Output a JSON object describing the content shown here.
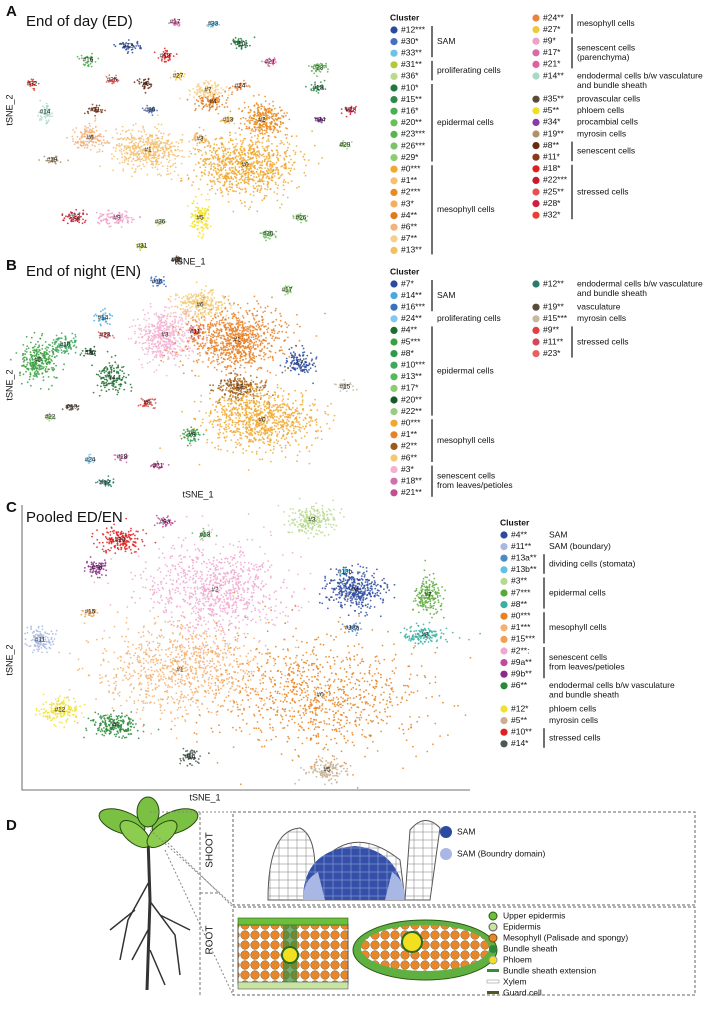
{
  "panels": [
    {
      "letter": "A",
      "title": "End of day (ED)",
      "x_label": "tSNE_1",
      "y_label": "tSNE_2",
      "clusters": [
        "#17",
        "#33",
        "#12",
        "#10",
        "#16",
        "#18",
        "#21",
        "#23",
        "#32",
        "#25",
        "#8",
        "#27",
        "#7",
        "#24",
        "#15",
        "#14",
        "#11",
        "#30",
        "#4",
        "#13",
        "#2",
        "#28",
        "#34",
        "#3",
        "#6",
        "#1",
        "#29",
        "#19",
        "#0",
        "#22",
        "#9",
        "#36",
        "#5",
        "#26",
        "#31",
        "#20",
        "#35"
      ],
      "legend": {
        "title": "Cluster",
        "columns": [
          [
            {
              "lines": [
                "SAM"
              ],
              "entries": [
                {
                  "label": "#12***",
                  "color": "#2c4a9e"
                },
                {
                  "label": "#30*",
                  "color": "#4a6fc0"
                },
                {
                  "label": "#33**",
                  "color": "#6cc3e8"
                }
              ]
            },
            {
              "lines": [
                "proliferating cells"
              ],
              "entries": [
                {
                  "label": "#31**",
                  "color": "#b5c73a"
                },
                {
                  "label": "#36*",
                  "color": "#b9dc8a"
                }
              ]
            },
            {
              "lines": [
                "epidermal cells"
              ],
              "entries": [
                {
                  "label": "#10*",
                  "color": "#1f7a3a"
                },
                {
                  "label": "#15**",
                  "color": "#2e8b4a"
                },
                {
                  "label": "#16*",
                  "color": "#4caf50"
                },
                {
                  "label": "#20**",
                  "color": "#6bbf59"
                },
                {
                  "label": "#23***",
                  "color": "#5ab34e"
                },
                {
                  "label": "#26***",
                  "color": "#7ac36a"
                },
                {
                  "label": "#29*",
                  "color": "#8fcc70"
                }
              ]
            },
            {
              "lines": [
                "mesophyll cells"
              ],
              "entries": [
                {
                  "label": "#0***",
                  "color": "#f0a830"
                },
                {
                  "label": "#1**",
                  "color": "#f5c070"
                },
                {
                  "label": "#2***",
                  "color": "#e88a20"
                },
                {
                  "label": "#3*",
                  "color": "#f0b060"
                },
                {
                  "label": "#4**",
                  "color": "#e07a1a"
                },
                {
                  "label": "#6**",
                  "color": "#f2b27a"
                },
                {
                  "label": "#7**",
                  "color": "#f6cf8a"
                },
                {
                  "label": "#13**",
                  "color": "#f2c060"
                }
              ]
            }
          ],
          [
            {
              "lines": [
                "mesophyll cells"
              ],
              "entries": [
                {
                  "label": "#24**",
                  "color": "#e8843c"
                },
                {
                  "label": "#27*",
                  "color": "#f0c840"
                }
              ]
            },
            {
              "lines": [
                "senescent cells",
                "(parenchyma)"
              ],
              "entries": [
                {
                  "label": "#9*",
                  "color": "#f0a0c8"
                },
                {
                  "label": "#17*",
                  "color": "#d96aa8"
                },
                {
                  "label": "#21*",
                  "color": "#e060a0"
                }
              ]
            },
            {
              "lines": [
                "endodermal cells b/w vasculature",
                "and bundle sheath"
              ],
              "entries": [
                {
                  "label": "#14**",
                  "color": "#a8d8c8"
                }
              ]
            },
            {
              "lines": [
                "provascular cells"
              ],
              "entries": [
                {
                  "label": "#35**",
                  "color": "#5a4a3a"
                }
              ]
            },
            {
              "lines": [
                "phloem cells"
              ],
              "entries": [
                {
                  "label": "#5**",
                  "color": "#f2e020"
                }
              ]
            },
            {
              "lines": [
                "procambial cells"
              ],
              "entries": [
                {
                  "label": "#34*",
                  "color": "#8a3aa0"
                }
              ]
            },
            {
              "lines": [
                "myrosin cells"
              ],
              "entries": [
                {
                  "label": "#19**",
                  "color": "#b0926a"
                }
              ]
            },
            {
              "lines": [
                "senescent cells"
              ],
              "entries": [
                {
                  "label": "#8**",
                  "color": "#6a2a10"
                },
                {
                  "label": "#11*",
                  "color": "#8a3a1a"
                }
              ]
            },
            {
              "lines": [
                "stressed cells"
              ],
              "entries": [
                {
                  "label": "#18*",
                  "color": "#e02020"
                },
                {
                  "label": "#22***",
                  "color": "#c81a2a"
                },
                {
                  "label": "#25**",
                  "color": "#e85050"
                },
                {
                  "label": "#28*",
                  "color": "#d02040"
                },
                {
                  "label": "#32*",
                  "color": "#e84030"
                }
              ]
            }
          ]
        ]
      }
    },
    {
      "letter": "B",
      "title": "End of night (EN)",
      "x_label": "tSNE_1",
      "y_label": "tSNE_2",
      "clusters": [
        "#16",
        "#17",
        "#6",
        "#14",
        "#3",
        "#11",
        "#23",
        "#10",
        "#1",
        "#7",
        "#5",
        "#20",
        "#4",
        "#2",
        "#15",
        "#9",
        "#19",
        "#0",
        "#22",
        "#8",
        "#24",
        "#18",
        "#21",
        "#12",
        "#13"
      ],
      "legend": {
        "title": "Cluster",
        "columns": [
          [
            {
              "lines": [
                "SAM"
              ],
              "entries": [
                {
                  "label": "#7*",
                  "color": "#2c4a9e"
                },
                {
                  "label": "#14**",
                  "color": "#4aa8e0"
                },
                {
                  "label": "#16***",
                  "color": "#3a70c0"
                }
              ]
            },
            {
              "lines": [
                "proliferating cells"
              ],
              "entries": [
                {
                  "label": "#24**",
                  "color": "#80c8f0"
                }
              ]
            },
            {
              "lines": [
                "epidermal cells"
              ],
              "entries": [
                {
                  "label": "#4**",
                  "color": "#1e6e30"
                },
                {
                  "label": "#5***",
                  "color": "#3aa040"
                },
                {
                  "label": "#8*",
                  "color": "#2e9a48"
                },
                {
                  "label": "#10***",
                  "color": "#3fa860"
                },
                {
                  "label": "#13**",
                  "color": "#56b85a"
                },
                {
                  "label": "#17*",
                  "color": "#8ccc70"
                },
                {
                  "label": "#20**",
                  "color": "#145a2a"
                },
                {
                  "label": "#22**",
                  "color": "#98cc80"
                }
              ]
            },
            {
              "lines": [
                "mesophyll cells"
              ],
              "entries": [
                {
                  "label": "#0***",
                  "color": "#f0a830"
                },
                {
                  "label": "#1**",
                  "color": "#e8822a"
                },
                {
                  "label": "#2**",
                  "color": "#9a5a1a"
                },
                {
                  "label": "#6**",
                  "color": "#f2c870"
                }
              ]
            },
            {
              "lines": [
                "senescent cells",
                "from leaves/petioles"
              ],
              "entries": [
                {
                  "label": "#3*",
                  "color": "#f5b0d0"
                },
                {
                  "label": "#18**",
                  "color": "#d070b0"
                },
                {
                  "label": "#21**",
                  "color": "#c05090"
                }
              ]
            }
          ],
          [
            {
              "lines": [
                "endodermal cells b/w vasculature",
                "and bundle sheath"
              ],
              "entries": [
                {
                  "label": "#12**",
                  "color": "#2a7a6a"
                }
              ]
            },
            {
              "lines": [
                "vasculature"
              ],
              "entries": [
                {
                  "label": "#19**",
                  "color": "#5a4a3a"
                }
              ]
            },
            {
              "lines": [
                "myrosin cells"
              ],
              "entries": [
                {
                  "label": "#15***",
                  "color": "#c8b8a0"
                }
              ]
            },
            {
              "lines": [
                "stressed cells"
              ],
              "entries": [
                {
                  "label": "#9**",
                  "color": "#e04040"
                },
                {
                  "label": "#11**",
                  "color": "#d04a5a"
                },
                {
                  "label": "#23*",
                  "color": "#e86060"
                }
              ]
            }
          ]
        ]
      }
    },
    {
      "letter": "C",
      "title": "Pooled ED/EN",
      "x_label": "tSNE_1",
      "y_label": "tSNE_2",
      "clusters": [
        "#3",
        "#9a",
        "#10",
        "#9b",
        "#13b",
        "#4",
        "#7",
        "#2",
        "#15",
        "#13a",
        "#8",
        "#11",
        "#1",
        "#0",
        "#12",
        "#6",
        "#14",
        "#5"
      ],
      "legend": {
        "title": "Cluster",
        "columns": [
          [
            {
              "lines": [
                "SAM"
              ],
              "entries": [
                {
                  "label": "#4**",
                  "color": "#2c4aa0"
                }
              ]
            },
            {
              "lines": [
                "SAM (boundary)"
              ],
              "entries": [
                {
                  "label": "#11**",
                  "color": "#a8b8e0"
                }
              ]
            },
            {
              "lines": [
                "dividing cells (stomata)"
              ],
              "entries": [
                {
                  "label": "#13a**",
                  "color": "#4a8ac8"
                },
                {
                  "label": "#13b**",
                  "color": "#60c0e8"
                }
              ]
            },
            {
              "lines": [
                "epidermal cells"
              ],
              "entries": [
                {
                  "label": "#3**",
                  "color": "#b8d890"
                },
                {
                  "label": "#7***",
                  "color": "#5aa83a"
                },
                {
                  "label": "#8**",
                  "color": "#3ab0a0"
                }
              ]
            },
            {
              "lines": [
                "mesophyll cells"
              ],
              "entries": [
                {
                  "label": "#0***",
                  "color": "#e8821e"
                },
                {
                  "label": "#1***",
                  "color": "#f5b070"
                },
                {
                  "label": "#15***",
                  "color": "#f0a050"
                }
              ]
            },
            {
              "lines": [
                "senescent cells",
                "from leaves/petioles"
              ],
              "entries": [
                {
                  "label": "#2**:",
                  "color": "#f0a8d0"
                },
                {
                  "label": "#9a**",
                  "color": "#c04aa0"
                },
                {
                  "label": "#9b**",
                  "color": "#8a2a8a"
                }
              ]
            },
            {
              "lines": [
                "endodermal cells b/w vasculature",
                "and bundle sheath"
              ],
              "entries": [
                {
                  "label": "#6**",
                  "color": "#2a8a3a"
                }
              ]
            },
            {
              "lines": [
                "phloem cells"
              ],
              "entries": [
                {
                  "label": "#12*",
                  "color": "#f0e030"
                }
              ]
            },
            {
              "lines": [
                "myrosin cells"
              ],
              "entries": [
                {
                  "label": "#5**",
                  "color": "#c8b090"
                }
              ]
            },
            {
              "lines": [
                "stressed cells"
              ],
              "entries": [
                {
                  "label": "#10**",
                  "color": "#e02020"
                },
                {
                  "label": "#14*",
                  "color": "#4a5a50"
                }
              ]
            }
          ]
        ]
      }
    }
  ],
  "panel_d": {
    "letter": "D",
    "shoot": "SHOOT",
    "root": "ROOT",
    "sam_legend": [
      "SAM",
      "SAM (Boundry domain)"
    ],
    "leaf_legend": [
      "Upper epidermis",
      "Epidermis",
      "Mesophyll (Palisade and spongy)",
      "Bundle sheath",
      "Phloem",
      "Bundle sheath extension",
      "Xylem",
      "Guard cell"
    ]
  }
}
